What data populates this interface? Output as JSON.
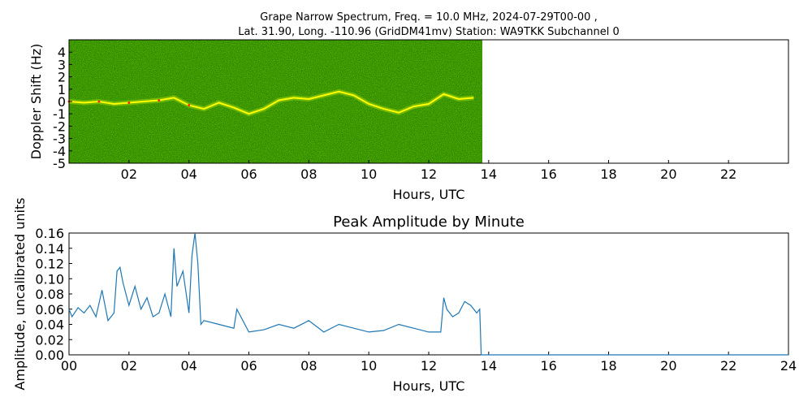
{
  "title_line1": "Grape Narrow Spectrum, Freq. = 10.0 MHz, 2024-07-29T00-00 ,",
  "title_line2": "Lat.  31.90, Long. -110.96 (GridDM41mv) Station: WA9TKK Subchannel 0",
  "chart_data": [
    {
      "type": "heatmap",
      "xlabel": "Hours, UTC",
      "ylabel": "Doppler Shift (Hz)",
      "xlim": [
        0,
        24
      ],
      "ylim": [
        -5,
        5
      ],
      "x_ticks": [
        "02",
        "04",
        "06",
        "08",
        "10",
        "12",
        "14",
        "16",
        "18",
        "20",
        "22"
      ],
      "y_ticks": [
        "4",
        "3",
        "2",
        "1",
        "0",
        "-1",
        "-2",
        "-3",
        "-4",
        "-5"
      ],
      "data_end_hour": 13.7,
      "colors": {
        "background": "#2e8b00",
        "mid": "#7fbf00",
        "peak_yellow": "#ffff00",
        "peak_red": "#ff2000"
      },
      "doppler_trace": [
        [
          0.0,
          0.0
        ],
        [
          0.5,
          -0.1
        ],
        [
          1.0,
          0.0
        ],
        [
          1.5,
          -0.2
        ],
        [
          2.0,
          -0.1
        ],
        [
          2.5,
          0.0
        ],
        [
          3.0,
          0.1
        ],
        [
          3.5,
          0.3
        ],
        [
          4.0,
          -0.3
        ],
        [
          4.5,
          -0.6
        ],
        [
          5.0,
          -0.1
        ],
        [
          5.5,
          -0.5
        ],
        [
          6.0,
          -1.0
        ],
        [
          6.5,
          -0.6
        ],
        [
          7.0,
          0.1
        ],
        [
          7.5,
          0.3
        ],
        [
          8.0,
          0.2
        ],
        [
          8.5,
          0.5
        ],
        [
          9.0,
          0.8
        ],
        [
          9.5,
          0.5
        ],
        [
          10.0,
          -0.2
        ],
        [
          10.5,
          -0.6
        ],
        [
          11.0,
          -0.9
        ],
        [
          11.5,
          -0.4
        ],
        [
          12.0,
          -0.2
        ],
        [
          12.5,
          0.6
        ],
        [
          13.0,
          0.2
        ],
        [
          13.5,
          0.3
        ]
      ]
    },
    {
      "type": "line",
      "title": "Peak Amplitude by Minute",
      "xlabel": "Hours, UTC",
      "ylabel": "Amplitude, uncalibrated units",
      "xlim": [
        0,
        24
      ],
      "ylim": [
        0,
        0.16
      ],
      "x_ticks": [
        "00",
        "02",
        "04",
        "06",
        "08",
        "10",
        "12",
        "14",
        "16",
        "18",
        "20",
        "22",
        "24"
      ],
      "y_ticks": [
        "0.00",
        "0.02",
        "0.04",
        "0.06",
        "0.08",
        "0.10",
        "0.12",
        "0.14",
        "0.16"
      ],
      "line_color": "#1f77b4",
      "series": [
        {
          "x": [
            0.0,
            0.1,
            0.3,
            0.5,
            0.7,
            0.9,
            1.1,
            1.3,
            1.5,
            1.6,
            1.7,
            1.8,
            2.0,
            2.2,
            2.4,
            2.6,
            2.8,
            3.0,
            3.2,
            3.4,
            3.5,
            3.6,
            3.8,
            4.0,
            4.1,
            4.2,
            4.3,
            4.4,
            4.5,
            5.0,
            5.5,
            5.6,
            6.0,
            6.5,
            7.0,
            7.5,
            8.0,
            8.5,
            9.0,
            9.5,
            10.0,
            10.5,
            11.0,
            11.5,
            12.0,
            12.4,
            12.5,
            12.6,
            12.8,
            13.0,
            13.2,
            13.4,
            13.6,
            13.7,
            13.75,
            14.0,
            16.0,
            18.0,
            20.0,
            22.0,
            24.0
          ],
          "y": [
            0.06,
            0.05,
            0.062,
            0.055,
            0.065,
            0.05,
            0.085,
            0.045,
            0.055,
            0.11,
            0.115,
            0.095,
            0.065,
            0.09,
            0.06,
            0.075,
            0.05,
            0.055,
            0.08,
            0.05,
            0.14,
            0.09,
            0.11,
            0.055,
            0.13,
            0.16,
            0.12,
            0.04,
            0.045,
            0.04,
            0.035,
            0.06,
            0.03,
            0.033,
            0.04,
            0.035,
            0.045,
            0.03,
            0.04,
            0.035,
            0.03,
            0.032,
            0.04,
            0.035,
            0.03,
            0.03,
            0.075,
            0.06,
            0.05,
            0.055,
            0.07,
            0.065,
            0.055,
            0.06,
            0.0,
            0.0,
            0.0,
            0.0,
            0.0,
            0.0,
            0.0
          ]
        }
      ]
    }
  ]
}
